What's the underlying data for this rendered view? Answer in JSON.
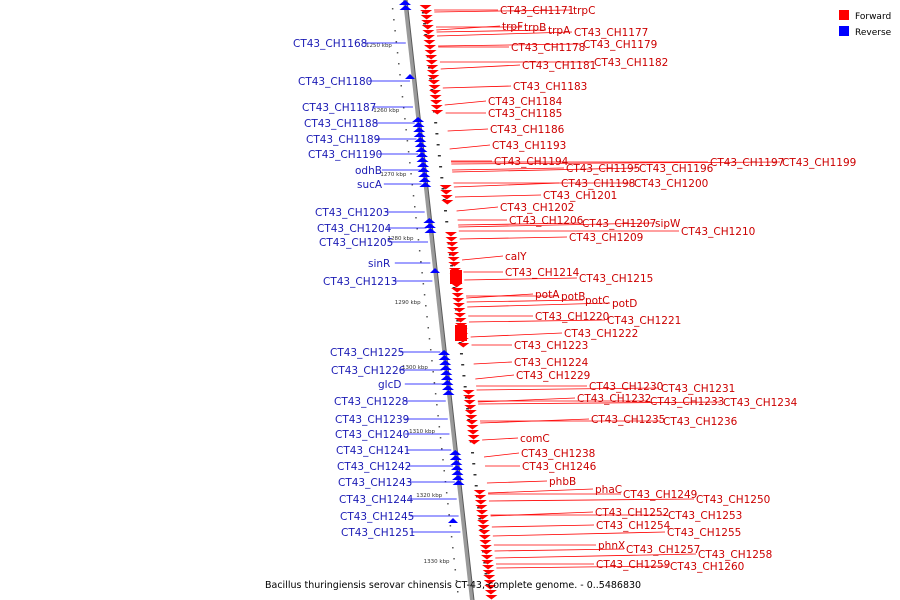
{
  "caption": "Bacillus thuringiensis serovar chinensis CT-43, complete genome. - 0..5486830",
  "legend": {
    "forward": "Forward",
    "reverse": "Reverse",
    "forward_color": "#ff0000",
    "reverse_color": "#0000ff"
  },
  "ticks": [
    "1250 kbp",
    "1260 kbp",
    "1270 kbp",
    "1280 kbp",
    "1290 kbp",
    "1300 kbp",
    "1310 kbp",
    "1320 kbp",
    "1330 kbp"
  ],
  "reverse_labels": [
    "CT43_CH1168",
    "CT43_CH1180",
    "CT43_CH1187",
    "CT43_CH1188",
    "CT43_CH1189",
    "CT43_CH1190",
    "odhB",
    "sucA",
    "CT43_CH1203",
    "CT43_CH1204",
    "CT43_CH1205",
    "sinR",
    "CT43_CH1213",
    "CT43_CH1225",
    "CT43_CH1226",
    "glcD",
    "CT43_CH1228",
    "CT43_CH1239",
    "CT43_CH1240",
    "CT43_CH1241",
    "CT43_CH1242",
    "CT43_CH1243",
    "CT43_CH1244",
    "CT43_CH1245",
    "CT43_CH1251"
  ],
  "forward_labels": [
    "CT43_CH1171",
    "trpC",
    "trpF",
    "trpB",
    "trpA",
    "CT43_CH1177",
    "CT43_CH1178",
    "CT43_CH1179",
    "CT43_CH1181",
    "CT43_CH1182",
    "CT43_CH1183",
    "CT43_CH1184",
    "CT43_CH1185",
    "CT43_CH1186",
    "CT43_CH1193",
    "CT43_CH1194",
    "CT43_CH1195",
    "CT43_CH1196",
    "CT43_CH1197",
    "CT43_CH1199",
    "CT43_CH1198",
    "CT43_CH1200",
    "CT43_CH1201",
    "CT43_CH1202",
    "CT43_CH1206",
    "CT43_CH1207",
    "sipW",
    "CT43_CH1210",
    "CT43_CH1209",
    "calY",
    "CT43_CH1214",
    "CT43_CH1215",
    "potA",
    "potB",
    "potC",
    "potD",
    "CT43_CH1220",
    "CT43_CH1221",
    "CT43_CH1222",
    "CT43_CH1223",
    "CT43_CH1224",
    "CT43_CH1229",
    "CT43_CH1230",
    "CT43_CH1231",
    "CT43_CH1232",
    "CT43_CH1233",
    "CT43_CH1234",
    "CT43_CH1235",
    "CT43_CH1236",
    "comC",
    "CT43_CH1238",
    "CT43_CH1246",
    "phbB",
    "phaC",
    "CT43_CH1249",
    "CT43_CH1250",
    "CT43_CH1252",
    "CT43_CH1253",
    "CT43_CH1254",
    "CT43_CH1255",
    "phnX",
    "CT43_CH1257",
    "CT43_CH1258",
    "CT43_CH1259",
    "CT43_CH1260"
  ]
}
